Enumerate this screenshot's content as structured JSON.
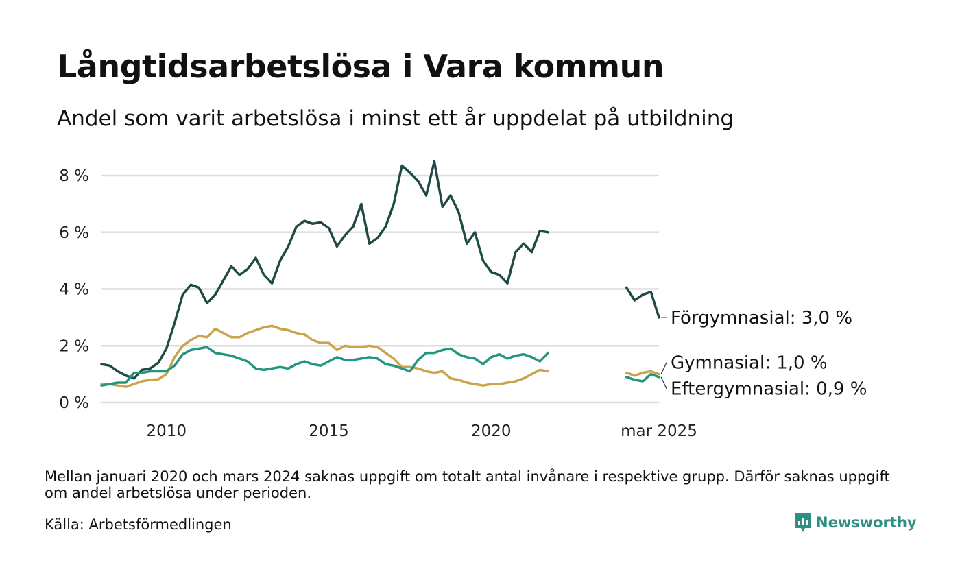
{
  "header": {
    "title": "Långtidsarbetslösa i Vara kommun",
    "subtitle": "Andel som varit arbetslösa i minst ett år uppdelat på utbildning"
  },
  "footer": {
    "note": "Mellan januari 2020 och mars 2024 saknas uppgift om totalt antal invånare i respektive grupp. Därför saknas uppgift om andel arbetslösa under perioden.",
    "source": "Källa: Arbetsförmedlingen",
    "brand": "Newsworthy",
    "brand_color": "#2f8f83"
  },
  "chart_data": {
    "type": "line",
    "title": "Långtidsarbetslösa i Vara kommun",
    "subtitle": "Andel som varit arbetslösa i minst ett år uppdelat på utbildning",
    "xlabel": "",
    "ylabel": "",
    "x_range": [
      "2008-01",
      "2025-03"
    ],
    "ylim": [
      0,
      8.5
    ],
    "y_ticks": [
      0,
      2,
      4,
      6,
      8
    ],
    "y_tick_labels": [
      "0 %",
      "2 %",
      "4 %",
      "6 %",
      "8 %"
    ],
    "x_ticks": [
      "2010-01",
      "2015-01",
      "2020-01",
      "2025-03"
    ],
    "x_tick_labels": [
      "2010",
      "2015",
      "2020",
      "mar 2025"
    ],
    "grid": "horizontal",
    "legend": "end-labels",
    "series": [
      {
        "name": "Förgymnasial",
        "end_label": "Förgymnasial: 3,0 %",
        "color": "#1f4a45",
        "segments": [
          [
            [
              "2008-01",
              1.35
            ],
            [
              "2008-04",
              1.3
            ],
            [
              "2008-07",
              1.1
            ],
            [
              "2008-10",
              0.95
            ],
            [
              "2009-01",
              0.85
            ],
            [
              "2009-04",
              1.15
            ],
            [
              "2009-07",
              1.2
            ],
            [
              "2009-10",
              1.4
            ],
            [
              "2010-01",
              1.9
            ],
            [
              "2010-04",
              2.8
            ],
            [
              "2010-07",
              3.8
            ],
            [
              "2010-10",
              4.15
            ],
            [
              "2011-01",
              4.05
            ],
            [
              "2011-04",
              3.5
            ],
            [
              "2011-07",
              3.8
            ],
            [
              "2011-10",
              4.3
            ],
            [
              "2012-01",
              4.8
            ],
            [
              "2012-04",
              4.5
            ],
            [
              "2012-07",
              4.7
            ],
            [
              "2012-10",
              5.1
            ],
            [
              "2013-01",
              4.5
            ],
            [
              "2013-04",
              4.2
            ],
            [
              "2013-07",
              5.0
            ],
            [
              "2013-10",
              5.5
            ],
            [
              "2014-01",
              6.2
            ],
            [
              "2014-04",
              6.4
            ],
            [
              "2014-07",
              6.3
            ],
            [
              "2014-10",
              6.35
            ],
            [
              "2015-01",
              6.15
            ],
            [
              "2015-04",
              5.5
            ],
            [
              "2015-07",
              5.9
            ],
            [
              "2015-10",
              6.2
            ],
            [
              "2016-01",
              7.0
            ],
            [
              "2016-04",
              5.6
            ],
            [
              "2016-07",
              5.8
            ],
            [
              "2016-10",
              6.2
            ],
            [
              "2017-01",
              7.0
            ],
            [
              "2017-04",
              8.35
            ],
            [
              "2017-07",
              8.1
            ],
            [
              "2017-10",
              7.8
            ],
            [
              "2018-01",
              7.3
            ],
            [
              "2018-04",
              8.5
            ],
            [
              "2018-07",
              6.9
            ],
            [
              "2018-10",
              7.3
            ],
            [
              "2019-01",
              6.7
            ],
            [
              "2019-04",
              5.6
            ],
            [
              "2019-07",
              6.0
            ],
            [
              "2019-10",
              5.0
            ],
            [
              "2020-01",
              4.6
            ],
            [
              "2020-04",
              4.5
            ],
            [
              "2020-07",
              4.2
            ],
            [
              "2020-10",
              5.3
            ],
            [
              "2021-01",
              5.6
            ],
            [
              "2021-04",
              5.3
            ],
            [
              "2021-07",
              6.05
            ],
            [
              "2021-10",
              6.0
            ]
          ],
          [
            [
              "2024-03",
              4.05
            ],
            [
              "2024-06",
              3.6
            ],
            [
              "2024-09",
              3.8
            ],
            [
              "2024-12",
              3.9
            ],
            [
              "2025-03",
              3.0
            ]
          ]
        ]
      },
      {
        "name": "Gymnasial",
        "end_label": "Gymnasial: 1,0 %",
        "color": "#c9a44e",
        "segments": [
          [
            [
              "2008-01",
              0.65
            ],
            [
              "2008-04",
              0.65
            ],
            [
              "2008-07",
              0.6
            ],
            [
              "2008-10",
              0.55
            ],
            [
              "2009-01",
              0.65
            ],
            [
              "2009-04",
              0.75
            ],
            [
              "2009-07",
              0.8
            ],
            [
              "2009-10",
              0.82
            ],
            [
              "2010-01",
              1.0
            ],
            [
              "2010-04",
              1.6
            ],
            [
              "2010-07",
              2.0
            ],
            [
              "2010-10",
              2.2
            ],
            [
              "2011-01",
              2.35
            ],
            [
              "2011-04",
              2.3
            ],
            [
              "2011-07",
              2.6
            ],
            [
              "2011-10",
              2.45
            ],
            [
              "2012-01",
              2.3
            ],
            [
              "2012-04",
              2.3
            ],
            [
              "2012-07",
              2.45
            ],
            [
              "2012-10",
              2.55
            ],
            [
              "2013-01",
              2.65
            ],
            [
              "2013-04",
              2.7
            ],
            [
              "2013-07",
              2.6
            ],
            [
              "2013-10",
              2.55
            ],
            [
              "2014-01",
              2.45
            ],
            [
              "2014-04",
              2.4
            ],
            [
              "2014-07",
              2.2
            ],
            [
              "2014-10",
              2.1
            ],
            [
              "2015-01",
              2.1
            ],
            [
              "2015-04",
              1.85
            ],
            [
              "2015-07",
              2.0
            ],
            [
              "2015-10",
              1.95
            ],
            [
              "2016-01",
              1.95
            ],
            [
              "2016-04",
              2.0
            ],
            [
              "2016-07",
              1.95
            ],
            [
              "2016-10",
              1.75
            ],
            [
              "2017-01",
              1.55
            ],
            [
              "2017-04",
              1.25
            ],
            [
              "2017-07",
              1.25
            ],
            [
              "2017-10",
              1.2
            ],
            [
              "2018-01",
              1.1
            ],
            [
              "2018-04",
              1.05
            ],
            [
              "2018-07",
              1.1
            ],
            [
              "2018-10",
              0.85
            ],
            [
              "2019-01",
              0.8
            ],
            [
              "2019-04",
              0.7
            ],
            [
              "2019-07",
              0.65
            ],
            [
              "2019-10",
              0.6
            ],
            [
              "2020-01",
              0.65
            ],
            [
              "2020-04",
              0.65
            ],
            [
              "2020-07",
              0.7
            ],
            [
              "2020-10",
              0.75
            ],
            [
              "2021-01",
              0.85
            ],
            [
              "2021-04",
              1.0
            ],
            [
              "2021-07",
              1.15
            ],
            [
              "2021-10",
              1.1
            ]
          ],
          [
            [
              "2024-03",
              1.05
            ],
            [
              "2024-06",
              0.95
            ],
            [
              "2024-09",
              1.05
            ],
            [
              "2024-12",
              1.1
            ],
            [
              "2025-03",
              1.0
            ]
          ]
        ]
      },
      {
        "name": "Eftergymnasial",
        "end_label": "Eftergymnasial: 0,9 %",
        "color": "#23967f",
        "segments": [
          [
            [
              "2008-01",
              0.6
            ],
            [
              "2008-04",
              0.65
            ],
            [
              "2008-07",
              0.7
            ],
            [
              "2008-10",
              0.7
            ],
            [
              "2009-01",
              1.05
            ],
            [
              "2009-04",
              1.05
            ],
            [
              "2009-07",
              1.1
            ],
            [
              "2009-10",
              1.1
            ],
            [
              "2010-01",
              1.1
            ],
            [
              "2010-04",
              1.3
            ],
            [
              "2010-07",
              1.7
            ],
            [
              "2010-10",
              1.85
            ],
            [
              "2011-01",
              1.9
            ],
            [
              "2011-04",
              1.95
            ],
            [
              "2011-07",
              1.75
            ],
            [
              "2011-10",
              1.7
            ],
            [
              "2012-01",
              1.65
            ],
            [
              "2012-04",
              1.55
            ],
            [
              "2012-07",
              1.45
            ],
            [
              "2012-10",
              1.2
            ],
            [
              "2013-01",
              1.15
            ],
            [
              "2013-04",
              1.2
            ],
            [
              "2013-07",
              1.25
            ],
            [
              "2013-10",
              1.2
            ],
            [
              "2014-01",
              1.35
            ],
            [
              "2014-04",
              1.45
            ],
            [
              "2014-07",
              1.35
            ],
            [
              "2014-10",
              1.3
            ],
            [
              "2015-01",
              1.45
            ],
            [
              "2015-04",
              1.6
            ],
            [
              "2015-07",
              1.5
            ],
            [
              "2015-10",
              1.5
            ],
            [
              "2016-01",
              1.55
            ],
            [
              "2016-04",
              1.6
            ],
            [
              "2016-07",
              1.55
            ],
            [
              "2016-10",
              1.35
            ],
            [
              "2017-01",
              1.3
            ],
            [
              "2017-04",
              1.2
            ],
            [
              "2017-07",
              1.1
            ],
            [
              "2017-10",
              1.5
            ],
            [
              "2018-01",
              1.75
            ],
            [
              "2018-04",
              1.75
            ],
            [
              "2018-07",
              1.85
            ],
            [
              "2018-10",
              1.9
            ],
            [
              "2019-01",
              1.7
            ],
            [
              "2019-04",
              1.6
            ],
            [
              "2019-07",
              1.55
            ],
            [
              "2019-10",
              1.35
            ],
            [
              "2020-01",
              1.6
            ],
            [
              "2020-04",
              1.7
            ],
            [
              "2020-07",
              1.55
            ],
            [
              "2020-10",
              1.65
            ],
            [
              "2021-01",
              1.7
            ],
            [
              "2021-04",
              1.6
            ],
            [
              "2021-07",
              1.45
            ],
            [
              "2021-10",
              1.75
            ]
          ],
          [
            [
              "2024-03",
              0.9
            ],
            [
              "2024-06",
              0.8
            ],
            [
              "2024-09",
              0.75
            ],
            [
              "2024-12",
              1.0
            ],
            [
              "2025-03",
              0.9
            ]
          ]
        ]
      }
    ]
  }
}
